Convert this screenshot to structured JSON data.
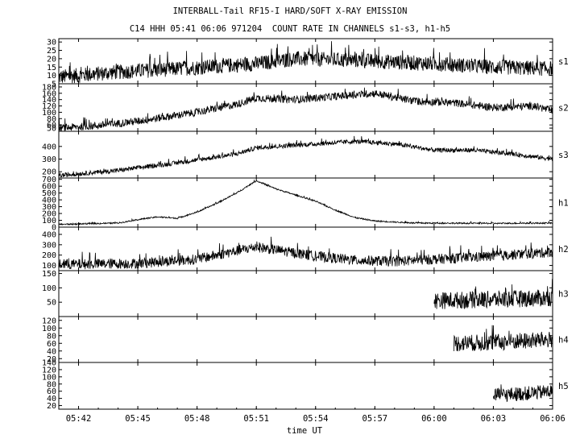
{
  "title": "INTERBALL-Tail RF15-I HARD/SOFT X-RAY EMISSION",
  "subtitle": "C14 HHH 05:41 06:06 971204  COUNT RATE IN CHANNELS s1-s3, h1-h5",
  "chart_data": {
    "type": "line",
    "title": "INTERBALL-Tail RF15-I HARD/SOFT X-RAY EMISSION",
    "subtitle": "C14 HHH 05:41 06:06 971204  COUNT RATE IN CHANNELS s1-s3, h1-h5",
    "xlabel": "time UT",
    "x_range": [
      "05:41",
      "06:06"
    ],
    "x_ticks": [
      "05:42",
      "05:45",
      "05:48",
      "05:51",
      "05:54",
      "05:57",
      "06:00",
      "06:03",
      "06:06"
    ],
    "grid": false,
    "panels": [
      {
        "name": "s1",
        "ylim": [
          5,
          32
        ],
        "y_ticks": [
          5,
          10,
          15,
          20,
          25,
          30
        ],
        "start": "05:41",
        "knots": [
          [
            "05:41",
            9
          ],
          [
            "05:44",
            12
          ],
          [
            "05:47",
            14
          ],
          [
            "05:51",
            17
          ],
          [
            "05:53",
            20
          ],
          [
            "05:56",
            19
          ],
          [
            "06:00",
            17
          ],
          [
            "06:03",
            15
          ],
          [
            "06:06",
            14
          ]
        ],
        "noise": 4.5
      },
      {
        "name": "s2",
        "ylim": [
          40,
          190
        ],
        "y_ticks": [
          50,
          60,
          80,
          100,
          120,
          140,
          160,
          180
        ],
        "start": "05:41",
        "knots": [
          [
            "05:41",
            50
          ],
          [
            "05:43",
            58
          ],
          [
            "05:45",
            72
          ],
          [
            "05:48",
            100
          ],
          [
            "05:50",
            125
          ],
          [
            "05:51",
            145
          ],
          [
            "05:53",
            140
          ],
          [
            "05:55",
            150
          ],
          [
            "05:57",
            160
          ],
          [
            "05:59",
            135
          ],
          [
            "06:01",
            130
          ],
          [
            "06:03",
            115
          ],
          [
            "06:05",
            120
          ],
          [
            "06:06",
            105
          ]
        ],
        "noise": 12
      },
      {
        "name": "s3",
        "ylim": [
          150,
          520
        ],
        "y_ticks": [
          200,
          300,
          400
        ],
        "start": "05:41",
        "knots": [
          [
            "05:41",
            170
          ],
          [
            "05:44",
            210
          ],
          [
            "05:47",
            270
          ],
          [
            "05:50",
            340
          ],
          [
            "05:51",
            390
          ],
          [
            "05:54",
            420
          ],
          [
            "05:56",
            440
          ],
          [
            "05:58",
            420
          ],
          [
            "06:00",
            370
          ],
          [
            "06:02",
            370
          ],
          [
            "06:04",
            340
          ],
          [
            "06:06",
            300
          ]
        ],
        "noise": 18
      },
      {
        "name": "h1",
        "ylim": [
          0,
          720
        ],
        "y_ticks": [
          0,
          100,
          200,
          300,
          400,
          500,
          600,
          700
        ],
        "start": "05:41",
        "knots": [
          [
            "05:41",
            40
          ],
          [
            "05:44",
            60
          ],
          [
            "05:45",
            110
          ],
          [
            "05:46",
            150
          ],
          [
            "05:47",
            130
          ],
          [
            "05:48",
            220
          ],
          [
            "05:49",
            350
          ],
          [
            "05:50",
            500
          ],
          [
            "05:51",
            680
          ],
          [
            "05:52",
            560
          ],
          [
            "05:53",
            470
          ],
          [
            "05:54",
            380
          ],
          [
            "05:55",
            250
          ],
          [
            "05:56",
            140
          ],
          [
            "05:57",
            90
          ],
          [
            "05:59",
            60
          ],
          [
            "06:03",
            55
          ],
          [
            "06:06",
            60
          ]
        ],
        "noise": 10
      },
      {
        "name": "h2",
        "ylim": [
          50,
          470
        ],
        "y_ticks": [
          100,
          200,
          300,
          400
        ],
        "start": "05:41",
        "knots": [
          [
            "05:41",
            110
          ],
          [
            "05:45",
            120
          ],
          [
            "05:48",
            160
          ],
          [
            "05:50",
            240
          ],
          [
            "05:51",
            280
          ],
          [
            "05:52",
            250
          ],
          [
            "05:54",
            190
          ],
          [
            "05:56",
            150
          ],
          [
            "05:58",
            140
          ],
          [
            "06:00",
            160
          ],
          [
            "06:03",
            190
          ],
          [
            "06:06",
            230
          ]
        ],
        "noise": 50
      },
      {
        "name": "h3",
        "ylim": [
          0,
          160
        ],
        "y_ticks": [
          50,
          100,
          150
        ],
        "start": "06:00",
        "knots": [
          [
            "06:00",
            55
          ],
          [
            "06:03",
            60
          ],
          [
            "06:06",
            65
          ]
        ],
        "noise": 30
      },
      {
        "name": "h4",
        "ylim": [
          10,
          130
        ],
        "y_ticks": [
          20,
          40,
          60,
          80,
          100,
          120
        ],
        "start": "06:01",
        "knots": [
          [
            "06:01",
            60
          ],
          [
            "06:03",
            62
          ],
          [
            "06:06",
            70
          ]
        ],
        "noise": 22
      },
      {
        "name": "h5",
        "ylim": [
          10,
          140
        ],
        "y_ticks": [
          20,
          40,
          60,
          80,
          100,
          120,
          140
        ],
        "start": "06:03",
        "knots": [
          [
            "06:03",
            48
          ],
          [
            "06:05",
            55
          ],
          [
            "06:06",
            60
          ]
        ],
        "noise": 20
      }
    ]
  }
}
